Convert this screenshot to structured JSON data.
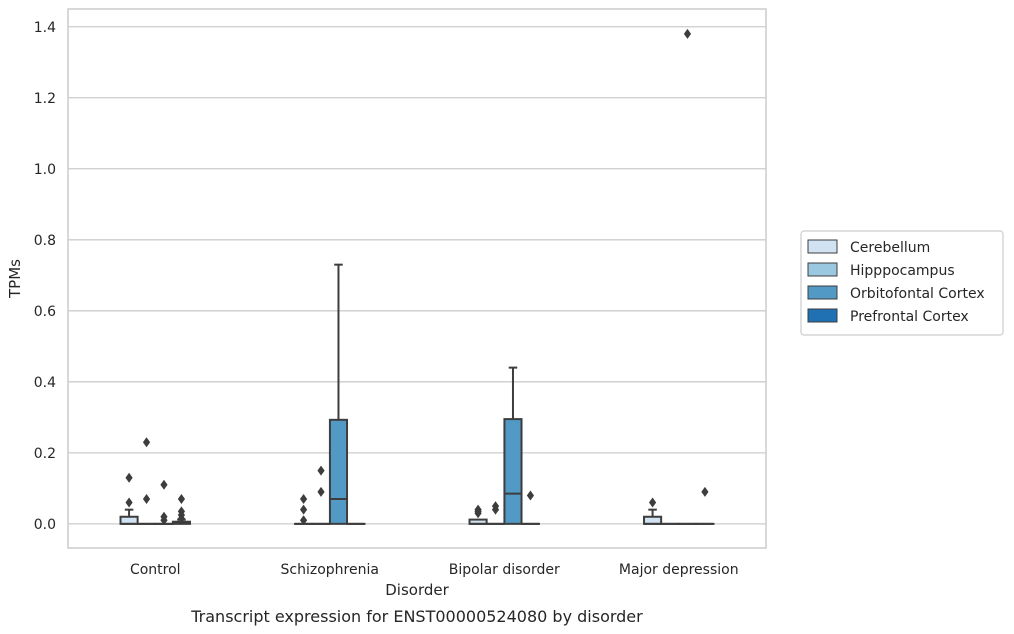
{
  "caption": "Transcript expression for ENST00000524080 by disorder",
  "chart_data": {
    "type": "box",
    "title": "",
    "xlabel": "Disorder",
    "ylabel": "TPMs",
    "ylim": [
      -0.068,
      1.45
    ],
    "yticks": [
      0.0,
      0.2,
      0.4,
      0.6,
      0.8,
      1.0,
      1.2,
      1.4
    ],
    "ytick_labels": [
      "0.0",
      "0.2",
      "0.4",
      "0.6",
      "0.8",
      "1.0",
      "1.2",
      "1.4"
    ],
    "grid": true,
    "legend_position": "right",
    "categories": [
      "Control",
      "Schizophrenia",
      "Bipolar disorder",
      "Major depression"
    ],
    "series": [
      {
        "name": "Cerebellum",
        "color": "#d1e3f3",
        "boxes": [
          {
            "q1": 0.0,
            "median": 0.0,
            "q3": 0.02,
            "whisker_low": 0.0,
            "whisker_high": 0.04,
            "outliers": [
              0.06,
              0.13
            ]
          },
          {
            "q1": 0.0,
            "median": 0.0,
            "q3": 0.0,
            "whisker_low": 0.0,
            "whisker_high": 0.0,
            "outliers": [
              0.01,
              0.04,
              0.07
            ]
          },
          {
            "q1": 0.0,
            "median": 0.0,
            "q3": 0.012,
            "whisker_low": 0.0,
            "whisker_high": 0.012,
            "outliers": [
              0.03,
              0.035,
              0.04
            ]
          },
          {
            "q1": 0.0,
            "median": 0.0,
            "q3": 0.02,
            "whisker_low": 0.0,
            "whisker_high": 0.04,
            "outliers": [
              0.06
            ]
          }
        ]
      },
      {
        "name": "Hipppocampus",
        "color": "#9ac8e0",
        "boxes": [
          {
            "q1": 0.0,
            "median": 0.0,
            "q3": 0.0,
            "whisker_low": 0.0,
            "whisker_high": 0.0,
            "outliers": [
              0.07,
              0.23
            ]
          },
          {
            "q1": 0.0,
            "median": 0.0,
            "q3": 0.0,
            "whisker_low": 0.0,
            "whisker_high": 0.0,
            "outliers": [
              0.09,
              0.15
            ]
          },
          {
            "q1": 0.0,
            "median": 0.0,
            "q3": 0.0,
            "whisker_low": 0.0,
            "whisker_high": 0.0,
            "outliers": [
              0.04,
              0.05
            ]
          },
          {
            "q1": 0.0,
            "median": 0.0,
            "q3": 0.0,
            "whisker_low": 0.0,
            "whisker_high": 0.0,
            "outliers": []
          }
        ]
      },
      {
        "name": "Orbitofontal Cortex",
        "color": "#5299c6",
        "boxes": [
          {
            "q1": 0.0,
            "median": 0.0,
            "q3": 0.0,
            "whisker_low": 0.0,
            "whisker_high": 0.0,
            "outliers": [
              0.01,
              0.02,
              0.11
            ]
          },
          {
            "q1": 0.0,
            "median": 0.07,
            "q3": 0.293,
            "whisker_low": 0.0,
            "whisker_high": 0.73,
            "outliers": []
          },
          {
            "q1": 0.0,
            "median": 0.085,
            "q3": 0.295,
            "whisker_low": 0.0,
            "whisker_high": 0.44,
            "outliers": []
          },
          {
            "q1": 0.0,
            "median": 0.0,
            "q3": 0.0,
            "whisker_low": 0.0,
            "whisker_high": 0.0,
            "outliers": [
              1.38
            ]
          }
        ]
      },
      {
        "name": "Prefrontal Cortex",
        "color": "#2070b4",
        "boxes": [
          {
            "q1": 0.0,
            "median": 0.002,
            "q3": 0.006,
            "whisker_low": 0.0,
            "whisker_high": 0.012,
            "outliers": [
              0.015,
              0.025,
              0.035,
              0.07
            ]
          },
          {
            "q1": 0.0,
            "median": 0.0,
            "q3": 0.0,
            "whisker_low": 0.0,
            "whisker_high": 0.0,
            "outliers": []
          },
          {
            "q1": 0.0,
            "median": 0.0,
            "q3": 0.0,
            "whisker_low": 0.0,
            "whisker_high": 0.0,
            "outliers": [
              0.08
            ]
          },
          {
            "q1": 0.0,
            "median": 0.0,
            "q3": 0.0,
            "whisker_low": 0.0,
            "whisker_high": 0.0,
            "outliers": [
              0.09
            ]
          }
        ]
      }
    ]
  }
}
